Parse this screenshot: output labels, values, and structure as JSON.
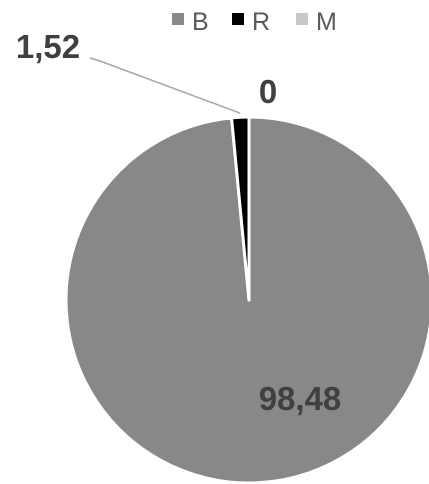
{
  "chart_data": {
    "type": "pie",
    "categories": [
      "B",
      "R",
      "M"
    ],
    "values": [
      98.48,
      1.52,
      0
    ],
    "data_labels": [
      "98,48",
      "1,52",
      "0"
    ],
    "colors": [
      "#888888",
      "#000000",
      "#c8c8c8"
    ],
    "legend": {
      "placement": "top",
      "entries": [
        "B",
        "R",
        "M"
      ]
    },
    "start_angle_deg": 0,
    "direction": "clockwise"
  }
}
